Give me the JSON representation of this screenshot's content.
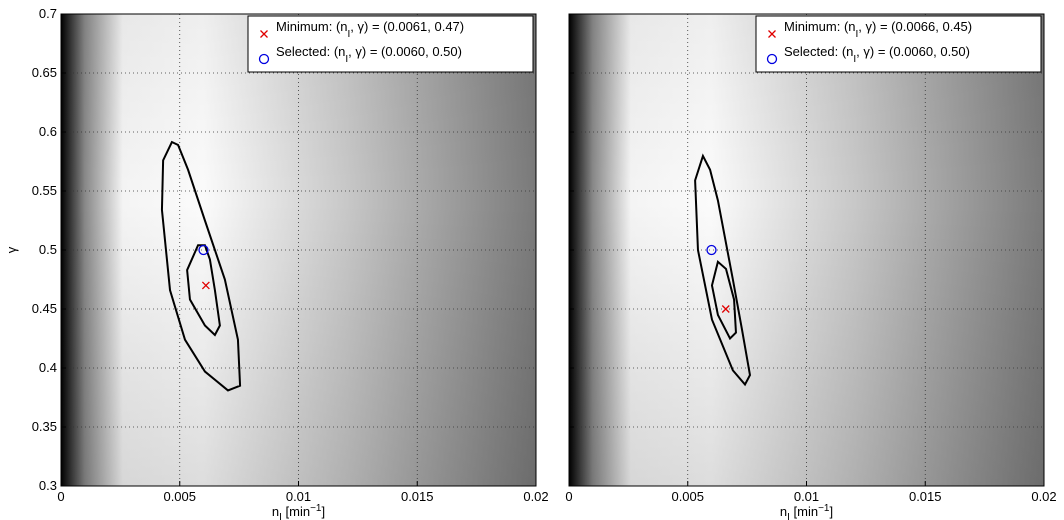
{
  "chart_data": [
    {
      "type": "contour",
      "xlabel": {
        "text": "n",
        "sub": "I",
        "unit": " [min",
        "sup": "−1",
        "close": "]"
      },
      "ylabel": "γ",
      "xlim": [
        0,
        0.02
      ],
      "ylim": [
        0.3,
        0.7
      ],
      "xticks": [
        0,
        0.005,
        0.01,
        0.015,
        0.02
      ],
      "yticks": [
        0.3,
        0.35,
        0.4,
        0.45,
        0.5,
        0.55,
        0.6,
        0.65,
        0.7
      ],
      "grid": true,
      "legend": "upper right",
      "contours": [
        {
          "color": "#000000",
          "x": [
            0.00467,
            0.0043,
            0.00425,
            0.00459,
            0.00522,
            0.00606,
            0.00703,
            0.00754,
            0.00745,
            0.0069,
            0.00606,
            0.00535,
            0.00493
          ],
          "y": [
            0.5915,
            0.576,
            0.534,
            0.466,
            0.424,
            0.397,
            0.381,
            0.385,
            0.424,
            0.475,
            0.525,
            0.568,
            0.589
          ]
        },
        {
          "color": "#000000",
          "x": [
            0.00577,
            0.00531,
            0.00543,
            0.00606,
            0.00648,
            0.00669,
            0.00648,
            0.00627,
            0.00606
          ],
          "y": [
            0.504,
            0.483,
            0.458,
            0.436,
            0.428,
            0.436,
            0.466,
            0.492,
            0.504
          ]
        }
      ],
      "series": [
        {
          "name": "Minimum: (n",
          "name_sub": "I",
          "name_rest": ", γ) = (0.0061, 0.47)",
          "marker": "x",
          "color": "#e00000",
          "x": [
            0.0061
          ],
          "values": [
            0.47
          ]
        },
        {
          "name": "Selected: (n",
          "name_sub": "I",
          "name_rest": ", γ) = (0.0060, 0.50)",
          "marker": "o",
          "color": "#0000e0",
          "x": [
            0.006
          ],
          "values": [
            0.5
          ]
        }
      ]
    },
    {
      "type": "contour",
      "xlabel": {
        "text": "n",
        "sub": "I",
        "unit": " [min",
        "sup": "−1",
        "close": "]"
      },
      "xlim": [
        0,
        0.02
      ],
      "ylim": [
        0.3,
        0.7
      ],
      "xticks": [
        0,
        0.005,
        0.01,
        0.015,
        0.02
      ],
      "grid": true,
      "legend": "upper right",
      "contours": [
        {
          "color": "#000000",
          "x": [
            0.00564,
            0.00531,
            0.00543,
            0.00602,
            0.0069,
            0.00741,
            0.00762,
            0.00728,
            0.0069,
            0.00627,
            0.00594
          ],
          "y": [
            0.5797,
            0.559,
            0.5,
            0.441,
            0.398,
            0.386,
            0.394,
            0.433,
            0.475,
            0.542,
            0.568
          ]
        },
        {
          "color": "#000000",
          "x": [
            0.00627,
            0.00602,
            0.00627,
            0.00678,
            0.00703,
            0.00695,
            0.00661
          ],
          "y": [
            0.49,
            0.47,
            0.445,
            0.425,
            0.43,
            0.458,
            0.484
          ]
        }
      ],
      "series": [
        {
          "name": "Minimum: (n",
          "name_sub": "I",
          "name_rest": ", γ) = (0.0066, 0.45)",
          "marker": "x",
          "color": "#e00000",
          "x": [
            0.0066
          ],
          "values": [
            0.45
          ]
        },
        {
          "name": "Selected: (n",
          "name_sub": "I",
          "name_rest": ", γ) = (0.0060, 0.50)",
          "marker": "o",
          "color": "#0000e0",
          "x": [
            0.006
          ],
          "values": [
            0.5
          ]
        }
      ]
    }
  ]
}
